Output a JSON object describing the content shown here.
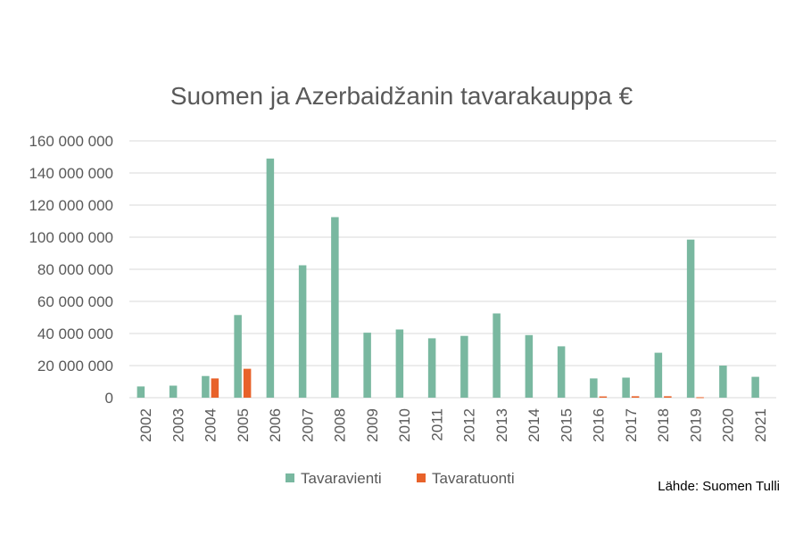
{
  "colors": {
    "export": "#79b8a0",
    "import": "#e8622a",
    "grid": "#d9d9d9",
    "text": "#595959"
  },
  "source_note": "Lähde: Suomen Tulli",
  "chart_data": {
    "type": "bar",
    "title": "Suomen ja Azerbaidžanin tavarakauppa €",
    "xlabel": "",
    "ylabel": "",
    "ylim": [
      0,
      160000000
    ],
    "yticks": [
      0,
      20000000,
      40000000,
      60000000,
      80000000,
      100000000,
      120000000,
      140000000,
      160000000
    ],
    "ytick_labels": [
      "0",
      "20 000 000",
      "40 000 000",
      "60 000 000",
      "80 000 000",
      "100 000 000",
      "120 000 000",
      "140 000 000",
      "160 000 000"
    ],
    "grid": true,
    "legend_position": "bottom",
    "categories": [
      "2002",
      "2003",
      "2004",
      "2005",
      "2006",
      "2007",
      "2008",
      "2009",
      "2010",
      "2011",
      "2012",
      "2013",
      "2014",
      "2015",
      "2016",
      "2017",
      "2018",
      "2019",
      "2020",
      "2021"
    ],
    "series": [
      {
        "name": "Tavaravienti",
        "values": [
          7000000,
          7500000,
          13500000,
          51500000,
          149000000,
          82500000,
          112500000,
          40500000,
          42500000,
          37000000,
          38500000,
          52500000,
          39000000,
          32000000,
          12000000,
          12500000,
          28000000,
          98500000,
          20000000,
          13000000
        ]
      },
      {
        "name": "Tavaratuonti",
        "values": [
          0,
          0,
          12000000,
          18000000,
          0,
          0,
          0,
          0,
          0,
          0,
          0,
          0,
          0,
          0,
          800000,
          900000,
          900000,
          300000,
          0,
          0
        ]
      }
    ]
  }
}
